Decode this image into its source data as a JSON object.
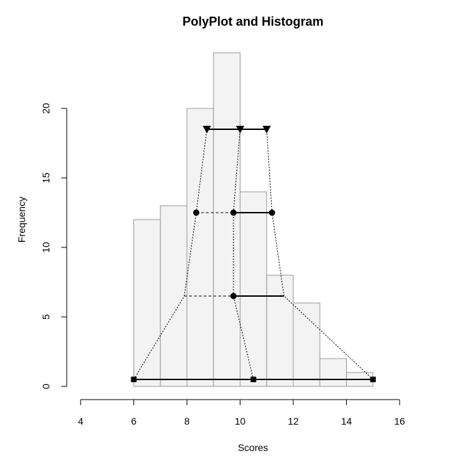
{
  "chart_data": {
    "type": "bar",
    "title": "PolyPlot and Histogram",
    "xlabel": "Scores",
    "ylabel": "Frequency",
    "xlim": [
      4,
      16
    ],
    "ylim": [
      0,
      24
    ],
    "x_ticks": [
      "4",
      "6",
      "8",
      "10",
      "12",
      "14",
      "16"
    ],
    "y_ticks": [
      "0",
      "5",
      "10",
      "15",
      "20"
    ],
    "grid": false,
    "histogram": {
      "bins": [
        [
          6,
          7
        ],
        [
          7,
          8
        ],
        [
          8,
          9
        ],
        [
          9,
          10
        ],
        [
          10,
          11
        ],
        [
          11,
          12
        ],
        [
          12,
          13
        ],
        [
          13,
          14
        ],
        [
          14,
          15
        ]
      ],
      "values": [
        12,
        13,
        20,
        24,
        14,
        8,
        6,
        2,
        1
      ],
      "fill": "#f3f3f3",
      "stroke": "#999999"
    },
    "polyplot": {
      "levels": [
        {
          "y": 0.5,
          "left": 6.0,
          "center": 10.5,
          "right": 15.0,
          "marker": "square"
        },
        {
          "y": 6.5,
          "left": 7.9,
          "center": 9.75,
          "right": 11.65,
          "marker": "dot-center"
        },
        {
          "y": 12.5,
          "left": 8.35,
          "center": 9.75,
          "right": 11.2,
          "marker": "dot"
        },
        {
          "y": 18.5,
          "left": 8.75,
          "center": 10.0,
          "right": 11.0,
          "marker": "triangle-down"
        }
      ]
    }
  }
}
